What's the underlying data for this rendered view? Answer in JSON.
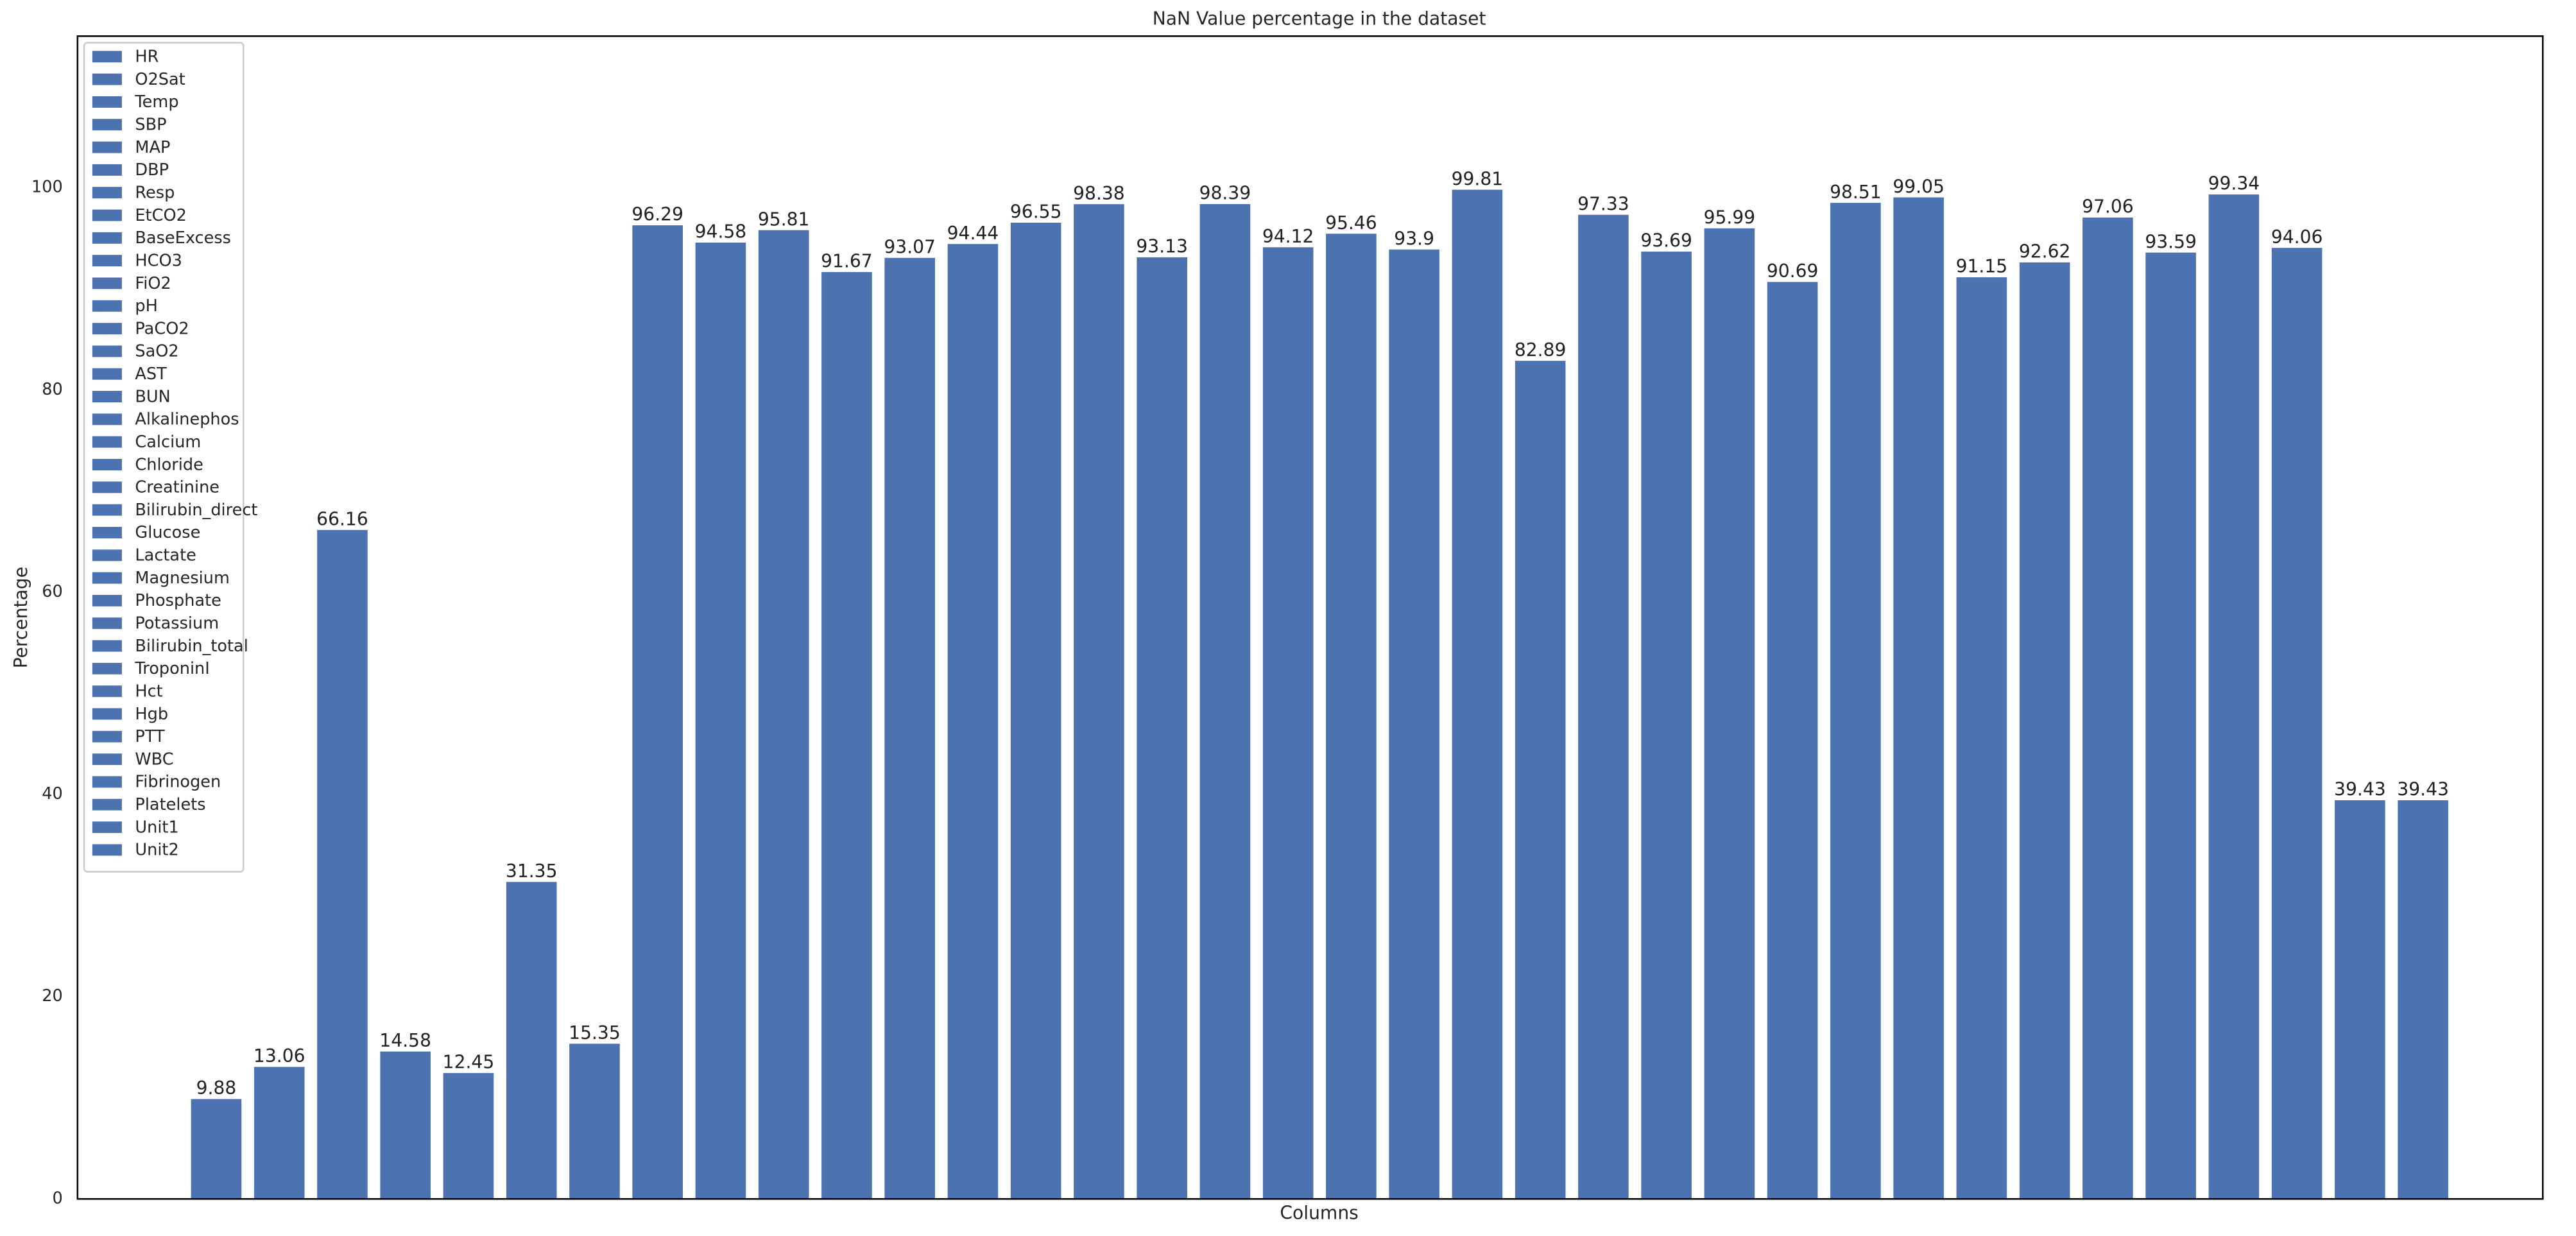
{
  "chart_data": {
    "type": "bar",
    "title": "NaN Value percentage in the dataset",
    "x_label": "Columns",
    "y_label": "Percentage",
    "categories": [
      "HR",
      "O2Sat",
      "Temp",
      "SBP",
      "MAP",
      "DBP",
      "Resp",
      "EtCO2",
      "BaseExcess",
      "HCO3",
      "FiO2",
      "pH",
      "PaCO2",
      "SaO2",
      "AST",
      "BUN",
      "Alkalinephos",
      "Calcium",
      "Chloride",
      "Creatinine",
      "Bilirubin_direct",
      "Glucose",
      "Lactate",
      "Magnesium",
      "Phosphate",
      "Potassium",
      "Bilirubin_total",
      "TroponinI",
      "Hct",
      "Hgb",
      "PTT",
      "WBC",
      "Fibrinogen",
      "Platelets",
      "Unit1",
      "Unit2"
    ],
    "values": [
      9.88,
      13.06,
      66.16,
      14.58,
      12.45,
      31.35,
      15.35,
      96.29,
      94.58,
      95.81,
      91.67,
      93.07,
      94.44,
      96.55,
      98.38,
      93.13,
      98.39,
      94.12,
      95.46,
      93.9,
      99.81,
      82.89,
      97.33,
      93.69,
      95.99,
      90.69,
      98.51,
      99.05,
      91.15,
      92.62,
      97.06,
      93.59,
      99.34,
      94.06,
      39.43,
      39.43
    ],
    "color": "#4c72b0",
    "xlim": [
      -2.2,
      36.9
    ],
    "ylim": [
      0,
      115
    ],
    "yticks": [
      0,
      20,
      40,
      60,
      80,
      100
    ],
    "grid": false,
    "legend": "upper left"
  }
}
